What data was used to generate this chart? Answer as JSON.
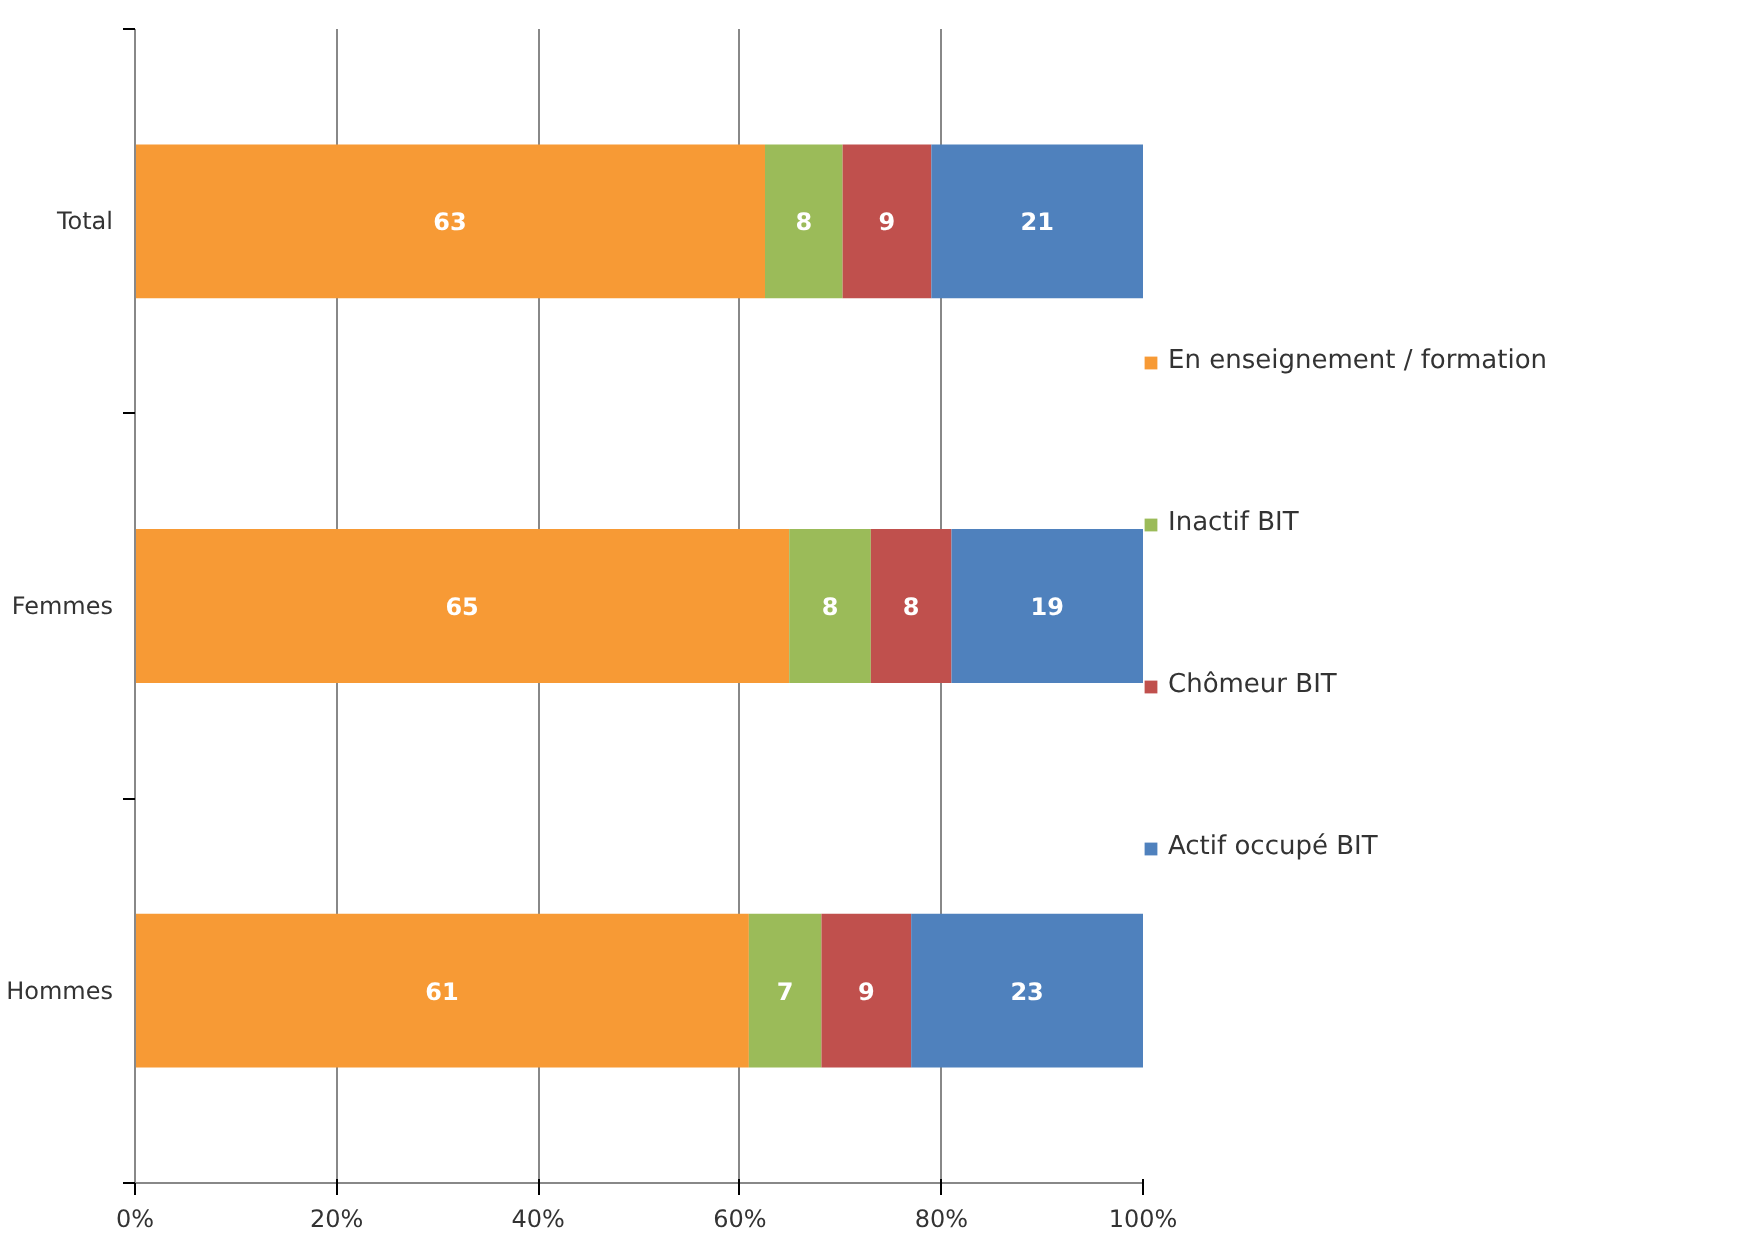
{
  "chart_data": {
    "type": "bar",
    "orientation": "horizontal",
    "stacked": true,
    "categories": [
      "Total",
      "Femmes",
      "Hommes"
    ],
    "series": [
      {
        "name": "En enseignement / formation",
        "color": "#f79a35",
        "values": [
          62.5,
          64.9,
          60.9
        ],
        "value_labels": [
          "63",
          "65",
          "61"
        ]
      },
      {
        "name": "Inactif BIT",
        "color": "#9bbb59",
        "values": [
          7.7,
          8.1,
          7.2
        ],
        "value_labels": [
          "8",
          "8",
          "7"
        ]
      },
      {
        "name": "Chômeur BIT",
        "color": "#c0504d",
        "values": [
          8.8,
          8.0,
          8.9
        ],
        "value_labels": [
          "9",
          "8",
          "9"
        ]
      },
      {
        "name": "Actif occupé BIT",
        "color": "#4f81bd",
        "values": [
          21.0,
          19.0,
          23.0
        ],
        "value_labels": [
          "21",
          "19",
          "23"
        ]
      }
    ],
    "xlim": [
      0,
      100
    ],
    "xticks": [
      {
        "value": 0,
        "label": "0%"
      },
      {
        "value": 20,
        "label": "20%"
      },
      {
        "value": 40,
        "label": "40%"
      },
      {
        "value": 60,
        "label": "60%"
      },
      {
        "value": 80,
        "label": "80%"
      },
      {
        "value": 100,
        "label": "100%"
      }
    ],
    "grid": "x",
    "legend": "right"
  }
}
